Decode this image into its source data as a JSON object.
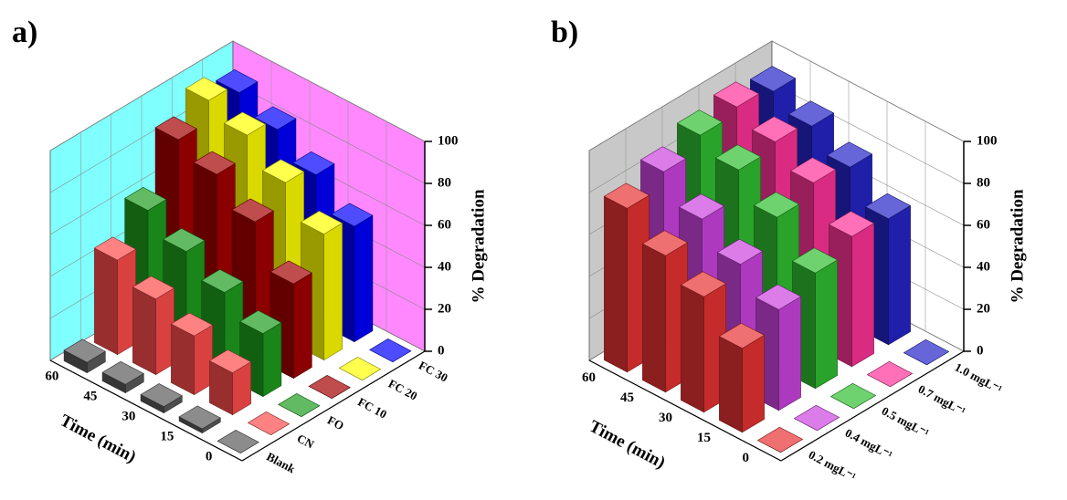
{
  "chart_data": [
    {
      "type": "bar3d",
      "title": "a)",
      "xlabel": "Time (min)",
      "ylabel": "% Degradation",
      "categories": [
        "0",
        "15",
        "30",
        "45",
        "60"
      ],
      "series": [
        {
          "name": "Blank",
          "color": "#5a5a5a",
          "values": [
            0,
            2,
            3,
            4,
            5
          ]
        },
        {
          "name": "CN",
          "color": "#ff4d4d",
          "values": [
            0,
            20,
            28,
            36,
            45
          ]
        },
        {
          "name": "FO",
          "color": "#1e9e1e",
          "values": [
            0,
            30,
            40,
            50,
            60
          ]
        },
        {
          "name": "FC 10",
          "color": "#a40000",
          "values": [
            0,
            45,
            65,
            78,
            85
          ]
        },
        {
          "name": "FC 20",
          "color": "#ffff00",
          "values": [
            0,
            60,
            75,
            88,
            95
          ]
        },
        {
          "name": "FC 30",
          "color": "#0000ff",
          "values": [
            0,
            55,
            70,
            82,
            90
          ]
        }
      ],
      "ylim": [
        0,
        100
      ],
      "yticks": [
        0,
        20,
        40,
        60,
        80,
        100
      ],
      "wall_colors": [
        "#80ffff",
        "#ff88ff"
      ]
    },
    {
      "type": "bar3d",
      "title": "b)",
      "xlabel": "Time (min)",
      "ylabel": "% Degradation",
      "categories": [
        "0",
        "15",
        "30",
        "45",
        "60"
      ],
      "series": [
        {
          "name": "0.2 mgL⁻¹",
          "color": "#e83232",
          "values": [
            0,
            40,
            55,
            65,
            78
          ]
        },
        {
          "name": "0.4 mgL⁻¹",
          "color": "#cc44e0",
          "values": [
            0,
            48,
            60,
            72,
            85
          ]
        },
        {
          "name": "0.5 mgL⁻¹",
          "color": "#30c030",
          "values": [
            0,
            55,
            72,
            85,
            92
          ]
        },
        {
          "name": "0.7 mgL⁻¹",
          "color": "#ff3399",
          "values": [
            0,
            62,
            78,
            88,
            95
          ]
        },
        {
          "name": "1.0 mgL⁻¹",
          "color": "#2525c8",
          "values": [
            0,
            60,
            75,
            85,
            92
          ]
        }
      ],
      "ylim": [
        0,
        100
      ],
      "yticks": [
        0,
        20,
        40,
        60,
        80,
        100
      ],
      "wall_colors": [
        "#c8c8c8",
        "#ffffff"
      ]
    }
  ]
}
